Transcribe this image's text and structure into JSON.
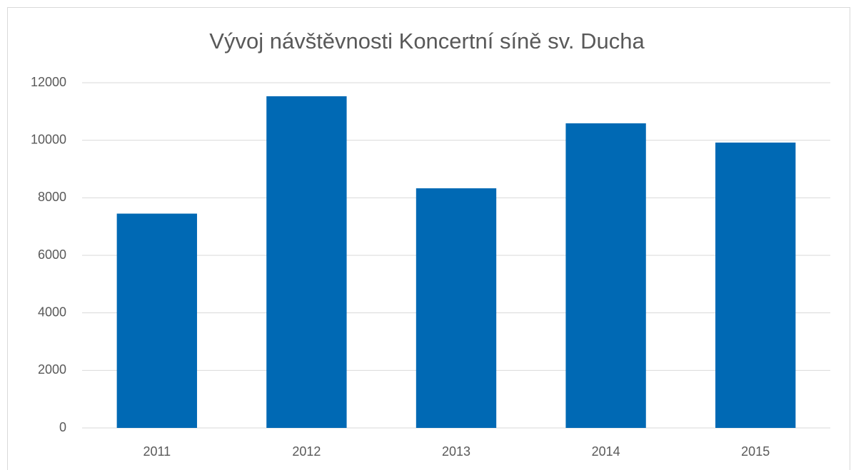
{
  "chart_data": {
    "type": "bar",
    "title": "Vývoj návštěvnosti Koncertní síně sv. Ducha",
    "categories": [
      "2011",
      "2012",
      "2013",
      "2014",
      "2015"
    ],
    "values": [
      7450,
      11530,
      8330,
      10590,
      9920
    ],
    "color": "#0069b4",
    "ylim": [
      0,
      12000
    ],
    "yticks": [
      0,
      2000,
      4000,
      6000,
      8000,
      10000,
      12000
    ],
    "grid": true
  }
}
